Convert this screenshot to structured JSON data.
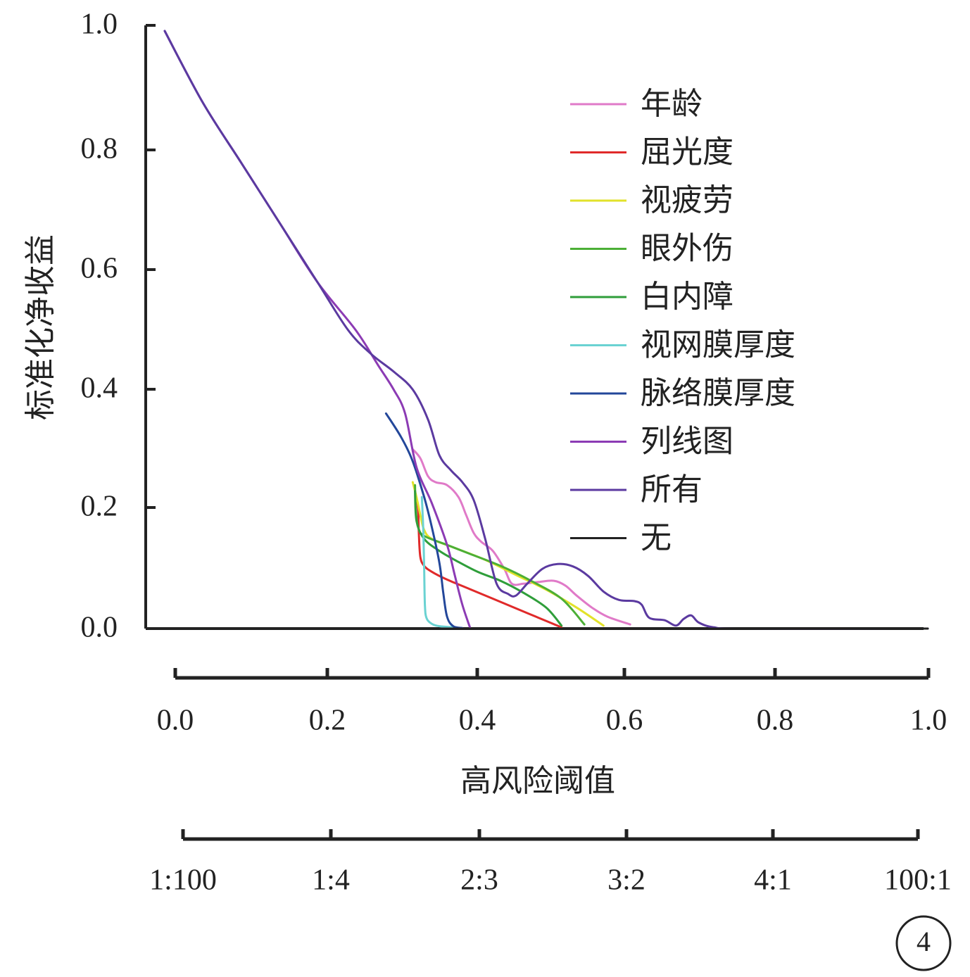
{
  "chart_data": {
    "type": "line",
    "title": "",
    "xlabel": "高风险阈值",
    "ylabel": "标准化净收益",
    "xlim": [
      0,
      1
    ],
    "ylim": [
      0,
      1
    ],
    "y_ticks": [
      "0.0",
      "0.2",
      "0.4",
      "0.6",
      "0.8",
      "1.0"
    ],
    "x_ticks": [
      "0.0",
      "0.2",
      "0.4",
      "0.6",
      "0.8",
      "1.0"
    ],
    "cost_benefit_ticks": [
      "1:100",
      "1:4",
      "2:3",
      "3:2",
      "4:1",
      "100:1"
    ],
    "legend_position": "top-right",
    "badge": "4",
    "series": [
      {
        "name": "年龄",
        "color": "#e07ac8",
        "points": [
          [
            0.325,
            0.3
          ],
          [
            0.335,
            0.285
          ],
          [
            0.345,
            0.255
          ],
          [
            0.355,
            0.245
          ],
          [
            0.37,
            0.24
          ],
          [
            0.385,
            0.22
          ],
          [
            0.395,
            0.19
          ],
          [
            0.405,
            0.16
          ],
          [
            0.415,
            0.145
          ],
          [
            0.43,
            0.13
          ],
          [
            0.445,
            0.1
          ],
          [
            0.455,
            0.075
          ],
          [
            0.47,
            0.075
          ],
          [
            0.49,
            0.078
          ],
          [
            0.51,
            0.08
          ],
          [
            0.525,
            0.072
          ],
          [
            0.54,
            0.055
          ],
          [
            0.56,
            0.035
          ],
          [
            0.58,
            0.02
          ],
          [
            0.61,
            0.007
          ]
        ]
      },
      {
        "name": "屈光度",
        "color": "#e02a2a",
        "points": [
          [
            0.328,
            0.23
          ],
          [
            0.332,
            0.2
          ],
          [
            0.333,
            0.16
          ],
          [
            0.335,
            0.12
          ],
          [
            0.34,
            0.105
          ],
          [
            0.35,
            0.095
          ],
          [
            0.37,
            0.082
          ],
          [
            0.4,
            0.066
          ],
          [
            0.43,
            0.05
          ],
          [
            0.46,
            0.034
          ],
          [
            0.49,
            0.018
          ],
          [
            0.52,
            0.002
          ]
        ]
      },
      {
        "name": "视疲劳",
        "color": "#e2e22a",
        "points": [
          [
            0.325,
            0.245
          ],
          [
            0.33,
            0.22
          ],
          [
            0.335,
            0.19
          ],
          [
            0.34,
            0.165
          ],
          [
            0.35,
            0.15
          ],
          [
            0.38,
            0.135
          ],
          [
            0.42,
            0.115
          ],
          [
            0.46,
            0.09
          ],
          [
            0.5,
            0.065
          ],
          [
            0.54,
            0.035
          ],
          [
            0.575,
            0.005
          ]
        ]
      },
      {
        "name": "眼外伤",
        "color": "#4caf36",
        "points": [
          [
            0.328,
            0.24
          ],
          [
            0.329,
            0.2
          ],
          [
            0.332,
            0.17
          ],
          [
            0.34,
            0.155
          ],
          [
            0.37,
            0.14
          ],
          [
            0.4,
            0.125
          ],
          [
            0.44,
            0.105
          ],
          [
            0.48,
            0.08
          ],
          [
            0.52,
            0.05
          ],
          [
            0.55,
            0.007
          ]
        ]
      },
      {
        "name": "白内障",
        "color": "#2f9e3a",
        "points": [
          [
            0.328,
            0.23
          ],
          [
            0.33,
            0.18
          ],
          [
            0.34,
            0.15
          ],
          [
            0.36,
            0.13
          ],
          [
            0.38,
            0.115
          ],
          [
            0.41,
            0.095
          ],
          [
            0.44,
            0.08
          ],
          [
            0.47,
            0.06
          ],
          [
            0.5,
            0.035
          ],
          [
            0.52,
            0.005
          ]
        ]
      },
      {
        "name": "视网膜厚度",
        "color": "#6ad2d2",
        "points": [
          [
            0.337,
            0.22
          ],
          [
            0.339,
            0.16
          ],
          [
            0.34,
            0.1
          ],
          [
            0.341,
            0.04
          ],
          [
            0.343,
            0.018
          ],
          [
            0.35,
            0.008
          ],
          [
            0.36,
            0.004
          ],
          [
            0.38,
            0.002
          ]
        ]
      },
      {
        "name": "脉络膜厚度",
        "color": "#23479a",
        "points": [
          [
            0.29,
            0.36
          ],
          [
            0.31,
            0.32
          ],
          [
            0.325,
            0.28
          ],
          [
            0.34,
            0.22
          ],
          [
            0.35,
            0.17
          ],
          [
            0.36,
            0.11
          ],
          [
            0.365,
            0.06
          ],
          [
            0.37,
            0.02
          ],
          [
            0.378,
            0.004
          ],
          [
            0.39,
            0.001
          ]
        ]
      },
      {
        "name": "列线图",
        "color": "#8c3bb4",
        "points": [
          [
            0.0,
            1.0
          ],
          [
            0.05,
            0.88
          ],
          [
            0.1,
            0.78
          ],
          [
            0.15,
            0.68
          ],
          [
            0.2,
            0.58
          ],
          [
            0.25,
            0.5
          ],
          [
            0.28,
            0.44
          ],
          [
            0.3,
            0.4
          ],
          [
            0.315,
            0.36
          ],
          [
            0.33,
            0.27
          ],
          [
            0.35,
            0.21
          ],
          [
            0.37,
            0.14
          ],
          [
            0.38,
            0.09
          ],
          [
            0.39,
            0.04
          ],
          [
            0.4,
            0.002
          ]
        ]
      },
      {
        "name": "所有",
        "color": "#5b3aa0",
        "points": [
          [
            0.0,
            1.0
          ],
          [
            0.05,
            0.88
          ],
          [
            0.1,
            0.78
          ],
          [
            0.15,
            0.68
          ],
          [
            0.2,
            0.58
          ],
          [
            0.24,
            0.5
          ],
          [
            0.27,
            0.46
          ],
          [
            0.3,
            0.43
          ],
          [
            0.325,
            0.4
          ],
          [
            0.345,
            0.35
          ],
          [
            0.36,
            0.29
          ],
          [
            0.375,
            0.265
          ],
          [
            0.39,
            0.245
          ],
          [
            0.405,
            0.215
          ],
          [
            0.42,
            0.15
          ],
          [
            0.435,
            0.075
          ],
          [
            0.45,
            0.058
          ],
          [
            0.46,
            0.055
          ],
          [
            0.475,
            0.075
          ],
          [
            0.495,
            0.1
          ],
          [
            0.515,
            0.108
          ],
          [
            0.535,
            0.104
          ],
          [
            0.555,
            0.088
          ],
          [
            0.575,
            0.062
          ],
          [
            0.595,
            0.048
          ],
          [
            0.615,
            0.046
          ],
          [
            0.625,
            0.04
          ],
          [
            0.635,
            0.018
          ],
          [
            0.655,
            0.014
          ],
          [
            0.67,
            0.005
          ],
          [
            0.68,
            0.016
          ],
          [
            0.69,
            0.022
          ],
          [
            0.7,
            0.01
          ],
          [
            0.72,
            0.002
          ],
          [
            0.76,
            0.0
          ],
          [
            1.0,
            0.0
          ]
        ]
      },
      {
        "name": "无",
        "color": "#222222",
        "points": [
          [
            0.0,
            0.0
          ],
          [
            1.0,
            0.0
          ]
        ]
      }
    ]
  }
}
